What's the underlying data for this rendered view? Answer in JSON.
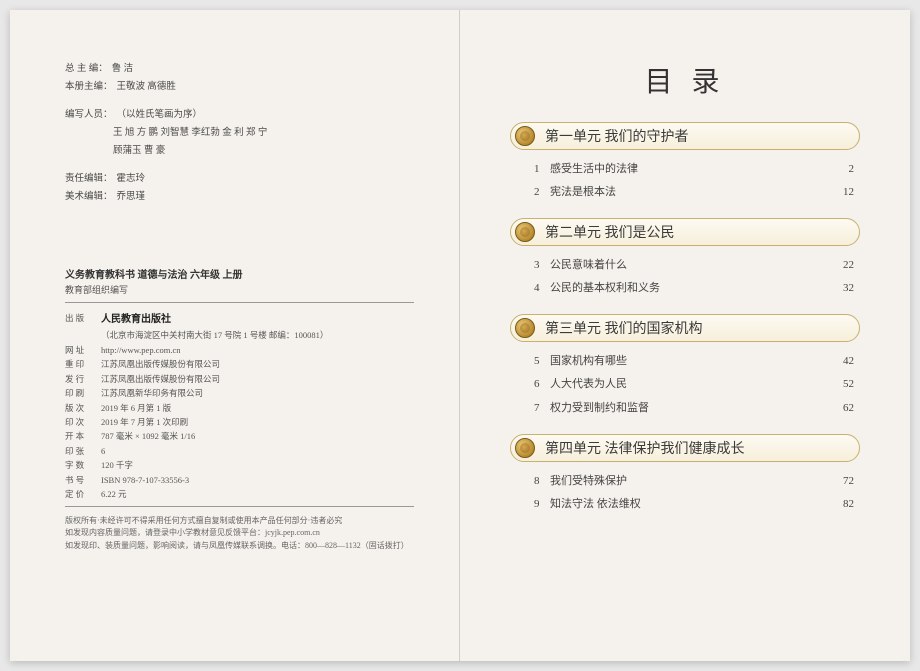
{
  "left": {
    "chief_editor_label": "总 主 编：",
    "chief_editor": "鲁  洁",
    "volume_editor_label": "本册主编：",
    "volume_editor": "王敬波  高德胜",
    "writers_label": "编写人员：",
    "writers_note": "（以姓氏笔画为序）",
    "writers_line1": "王  旭  方  鹏  刘智慧  李红勃  金  利  郑  宁",
    "writers_line2": "顾蒲玉  曹  豪",
    "resp_editor_label": "责任编辑：",
    "resp_editor": "霍志玲",
    "art_editor_label": "美术编辑：",
    "art_editor": "乔思瑾",
    "book_title": "义务教育教科书  道德与法治  六年级  上册",
    "book_sub": "教育部组织编写",
    "pub_label": "出  版",
    "publisher": "人民教育出版社",
    "publisher_addr": "（北京市海淀区中关村南大街 17 号院 1 号楼  邮编：100081）",
    "web_label": "网  址",
    "web": "http://www.pep.com.cn",
    "reprint_label": "重  印",
    "reprint": "江苏凤凰出版传媒股份有限公司",
    "issue_label": "发  行",
    "issue": "江苏凤凰出版传媒股份有限公司",
    "print_label": "印  刷",
    "print": "江苏凤凰新华印务有限公司",
    "edition_label": "版  次",
    "edition": "2019 年 6 月第 1 版",
    "printing_label": "印  次",
    "printing": "2019 年 7 月第 1 次印刷",
    "size_label": "开  本",
    "size": "787 毫米 × 1092 毫米  1/16",
    "sheets_label": "印  张",
    "sheets": "6",
    "words_label": "字  数",
    "words": "120 千字",
    "isbn_label": "书  号",
    "isbn": "ISBN 978-7-107-33556-3",
    "price_label": "定  价",
    "price": "6.22 元",
    "legal1": "版权所有·未经许可不得采用任何方式擅自复制或使用本产品任何部分·违者必究",
    "legal2": "如发现内容质量问题，请登录中小学教材意见反馈平台：jcyjk.pep.com.cn",
    "legal3": "如发现印、装质量问题，影响阅读，请与凤凰传媒联系调换。电话：800—828—1132（固话拨打）"
  },
  "right": {
    "toc_title": "目 录",
    "units": [
      {
        "title": "第一单元  我们的守护者",
        "chapters": [
          {
            "num": "1",
            "title": "感受生活中的法律",
            "page": "2"
          },
          {
            "num": "2",
            "title": "宪法是根本法",
            "page": "12"
          }
        ]
      },
      {
        "title": "第二单元  我们是公民",
        "chapters": [
          {
            "num": "3",
            "title": "公民意味着什么",
            "page": "22"
          },
          {
            "num": "4",
            "title": "公民的基本权利和义务",
            "page": "32"
          }
        ]
      },
      {
        "title": "第三单元  我们的国家机构",
        "chapters": [
          {
            "num": "5",
            "title": "国家机构有哪些",
            "page": "42"
          },
          {
            "num": "6",
            "title": "人大代表为人民",
            "page": "52"
          },
          {
            "num": "7",
            "title": "权力受到制约和监督",
            "page": "62"
          }
        ]
      },
      {
        "title": "第四单元  法律保护我们健康成长",
        "chapters": [
          {
            "num": "8",
            "title": "我们受特殊保护",
            "page": "72"
          },
          {
            "num": "9",
            "title": "知法守法  依法维权",
            "page": "82"
          }
        ]
      }
    ]
  }
}
